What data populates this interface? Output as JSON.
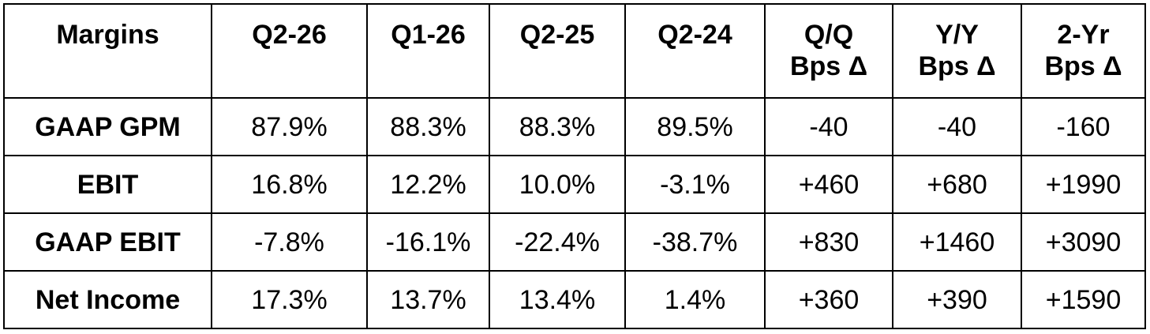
{
  "table": {
    "corner_header": "Margins",
    "headers": [
      [
        "Q2-26"
      ],
      [
        "Q1-26"
      ],
      [
        "Q2-25"
      ],
      [
        "Q2-24"
      ],
      [
        "Q/Q",
        "Bps Δ"
      ],
      [
        "Y/Y",
        "Bps Δ"
      ],
      [
        "2-Yr",
        "Bps Δ"
      ]
    ],
    "rows": [
      {
        "label": "GAAP GPM",
        "values": [
          "87.9%",
          "88.3%",
          "88.3%",
          "89.5%",
          "-40",
          "-40",
          "-160"
        ]
      },
      {
        "label": "EBIT",
        "values": [
          "16.8%",
          "12.2%",
          "10.0%",
          "-3.1%",
          "+460",
          "+680",
          "+1990"
        ]
      },
      {
        "label": "GAAP EBIT",
        "values": [
          "-7.8%",
          "-16.1%",
          "-22.4%",
          "-38.7%",
          "+830",
          "+1460",
          "+3090"
        ]
      },
      {
        "label": "Net Income",
        "values": [
          "17.3%",
          "13.7%",
          "13.4%",
          "1.4%",
          "+360",
          "+390",
          "+1590"
        ]
      }
    ]
  }
}
